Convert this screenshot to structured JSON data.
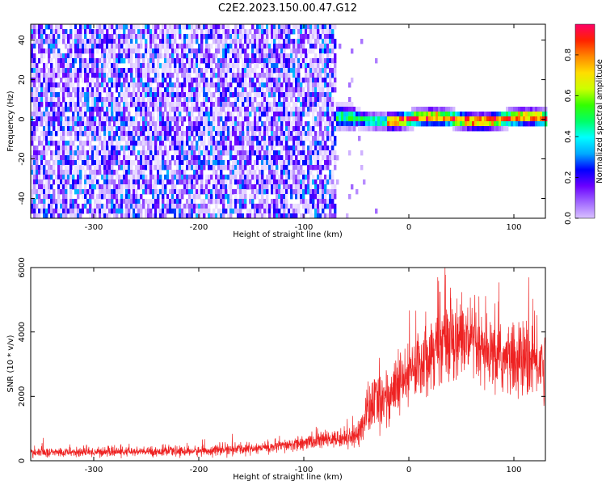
{
  "title": "C2E2.2023.150.00.47.G12",
  "colors": {
    "snr_line": "#ee2222",
    "frame": "#000000",
    "colormap": [
      "#ffffff",
      "#d9c2ff",
      "#a066ff",
      "#6a00ff",
      "#0000ff",
      "#00aaff",
      "#00ffff",
      "#00ff66",
      "#33ff00",
      "#ccff00",
      "#ffdd00",
      "#ff8800",
      "#ff2200",
      "#ff0066"
    ]
  },
  "chart_data": [
    {
      "type": "heatmap",
      "title": "C2E2.2023.150.00.47.G12",
      "xlabel": "Height of straight line (km)",
      "ylabel": "Frequency (Hz)",
      "xlim": [
        -360,
        130
      ],
      "ylim": [
        -50,
        48
      ],
      "x_ticks": [
        "-300",
        "-200",
        "-100",
        "0",
        "100"
      ],
      "x_tick_values": [
        -300,
        -200,
        -100,
        0,
        100
      ],
      "y_ticks": [
        "-40",
        "-20",
        "0",
        "20",
        "40"
      ],
      "y_tick_values": [
        -40,
        -20,
        0,
        20,
        40
      ],
      "noise_region": {
        "x_range": [
          -360,
          -70
        ],
        "amplitude_range": [
          0.0,
          0.35
        ]
      },
      "signal_band": {
        "x_range": [
          -72,
          130
        ],
        "center_frequency_hz": 0,
        "half_width_hz": 5,
        "peak_amplitude": 0.95
      },
      "colorbar": {
        "label": "Normalized spectral amplitude",
        "range": [
          0.0,
          0.95
        ],
        "ticks": [
          "0.0",
          "0.2",
          "0.4",
          "0.6",
          "0.8"
        ],
        "tick_values": [
          0.0,
          0.2,
          0.4,
          0.6,
          0.8
        ]
      }
    },
    {
      "type": "line",
      "xlabel": "Height of straight line (km)",
      "ylabel": "SNR (10 * v/v)",
      "xlim": [
        -360,
        130
      ],
      "ylim": [
        0,
        6000
      ],
      "x_ticks": [
        "-300",
        "-200",
        "-100",
        "0",
        "100"
      ],
      "x_tick_values": [
        -300,
        -200,
        -100,
        0,
        100
      ],
      "y_ticks": [
        "0",
        "2000",
        "4000",
        "6000"
      ],
      "y_tick_values": [
        0,
        2000,
        4000,
        6000
      ],
      "series": [
        {
          "x": [
            -360,
            -300,
            -250,
            -200,
            -150,
            -120,
            -100,
            -80,
            -60,
            -50,
            -45,
            -40,
            -30,
            -20,
            -10,
            0,
            10,
            20,
            30,
            40,
            50,
            60,
            70,
            80,
            90,
            100,
            110,
            120,
            130
          ],
          "y": [
            250,
            270,
            280,
            300,
            380,
            450,
            550,
            650,
            700,
            800,
            1000,
            1500,
            1900,
            2000,
            2300,
            2600,
            3100,
            3400,
            3700,
            3900,
            3800,
            3600,
            3300,
            3200,
            3150,
            3100,
            3100,
            3050,
            3050
          ],
          "spread": [
            150,
            160,
            160,
            170,
            200,
            220,
            250,
            280,
            300,
            400,
            600,
            900,
            1000,
            1000,
            1100,
            1100,
            1200,
            1300,
            1400,
            1500,
            1400,
            1300,
            1200,
            1200,
            1200,
            1300,
            1300,
            1300,
            1300
          ]
        }
      ]
    }
  ]
}
